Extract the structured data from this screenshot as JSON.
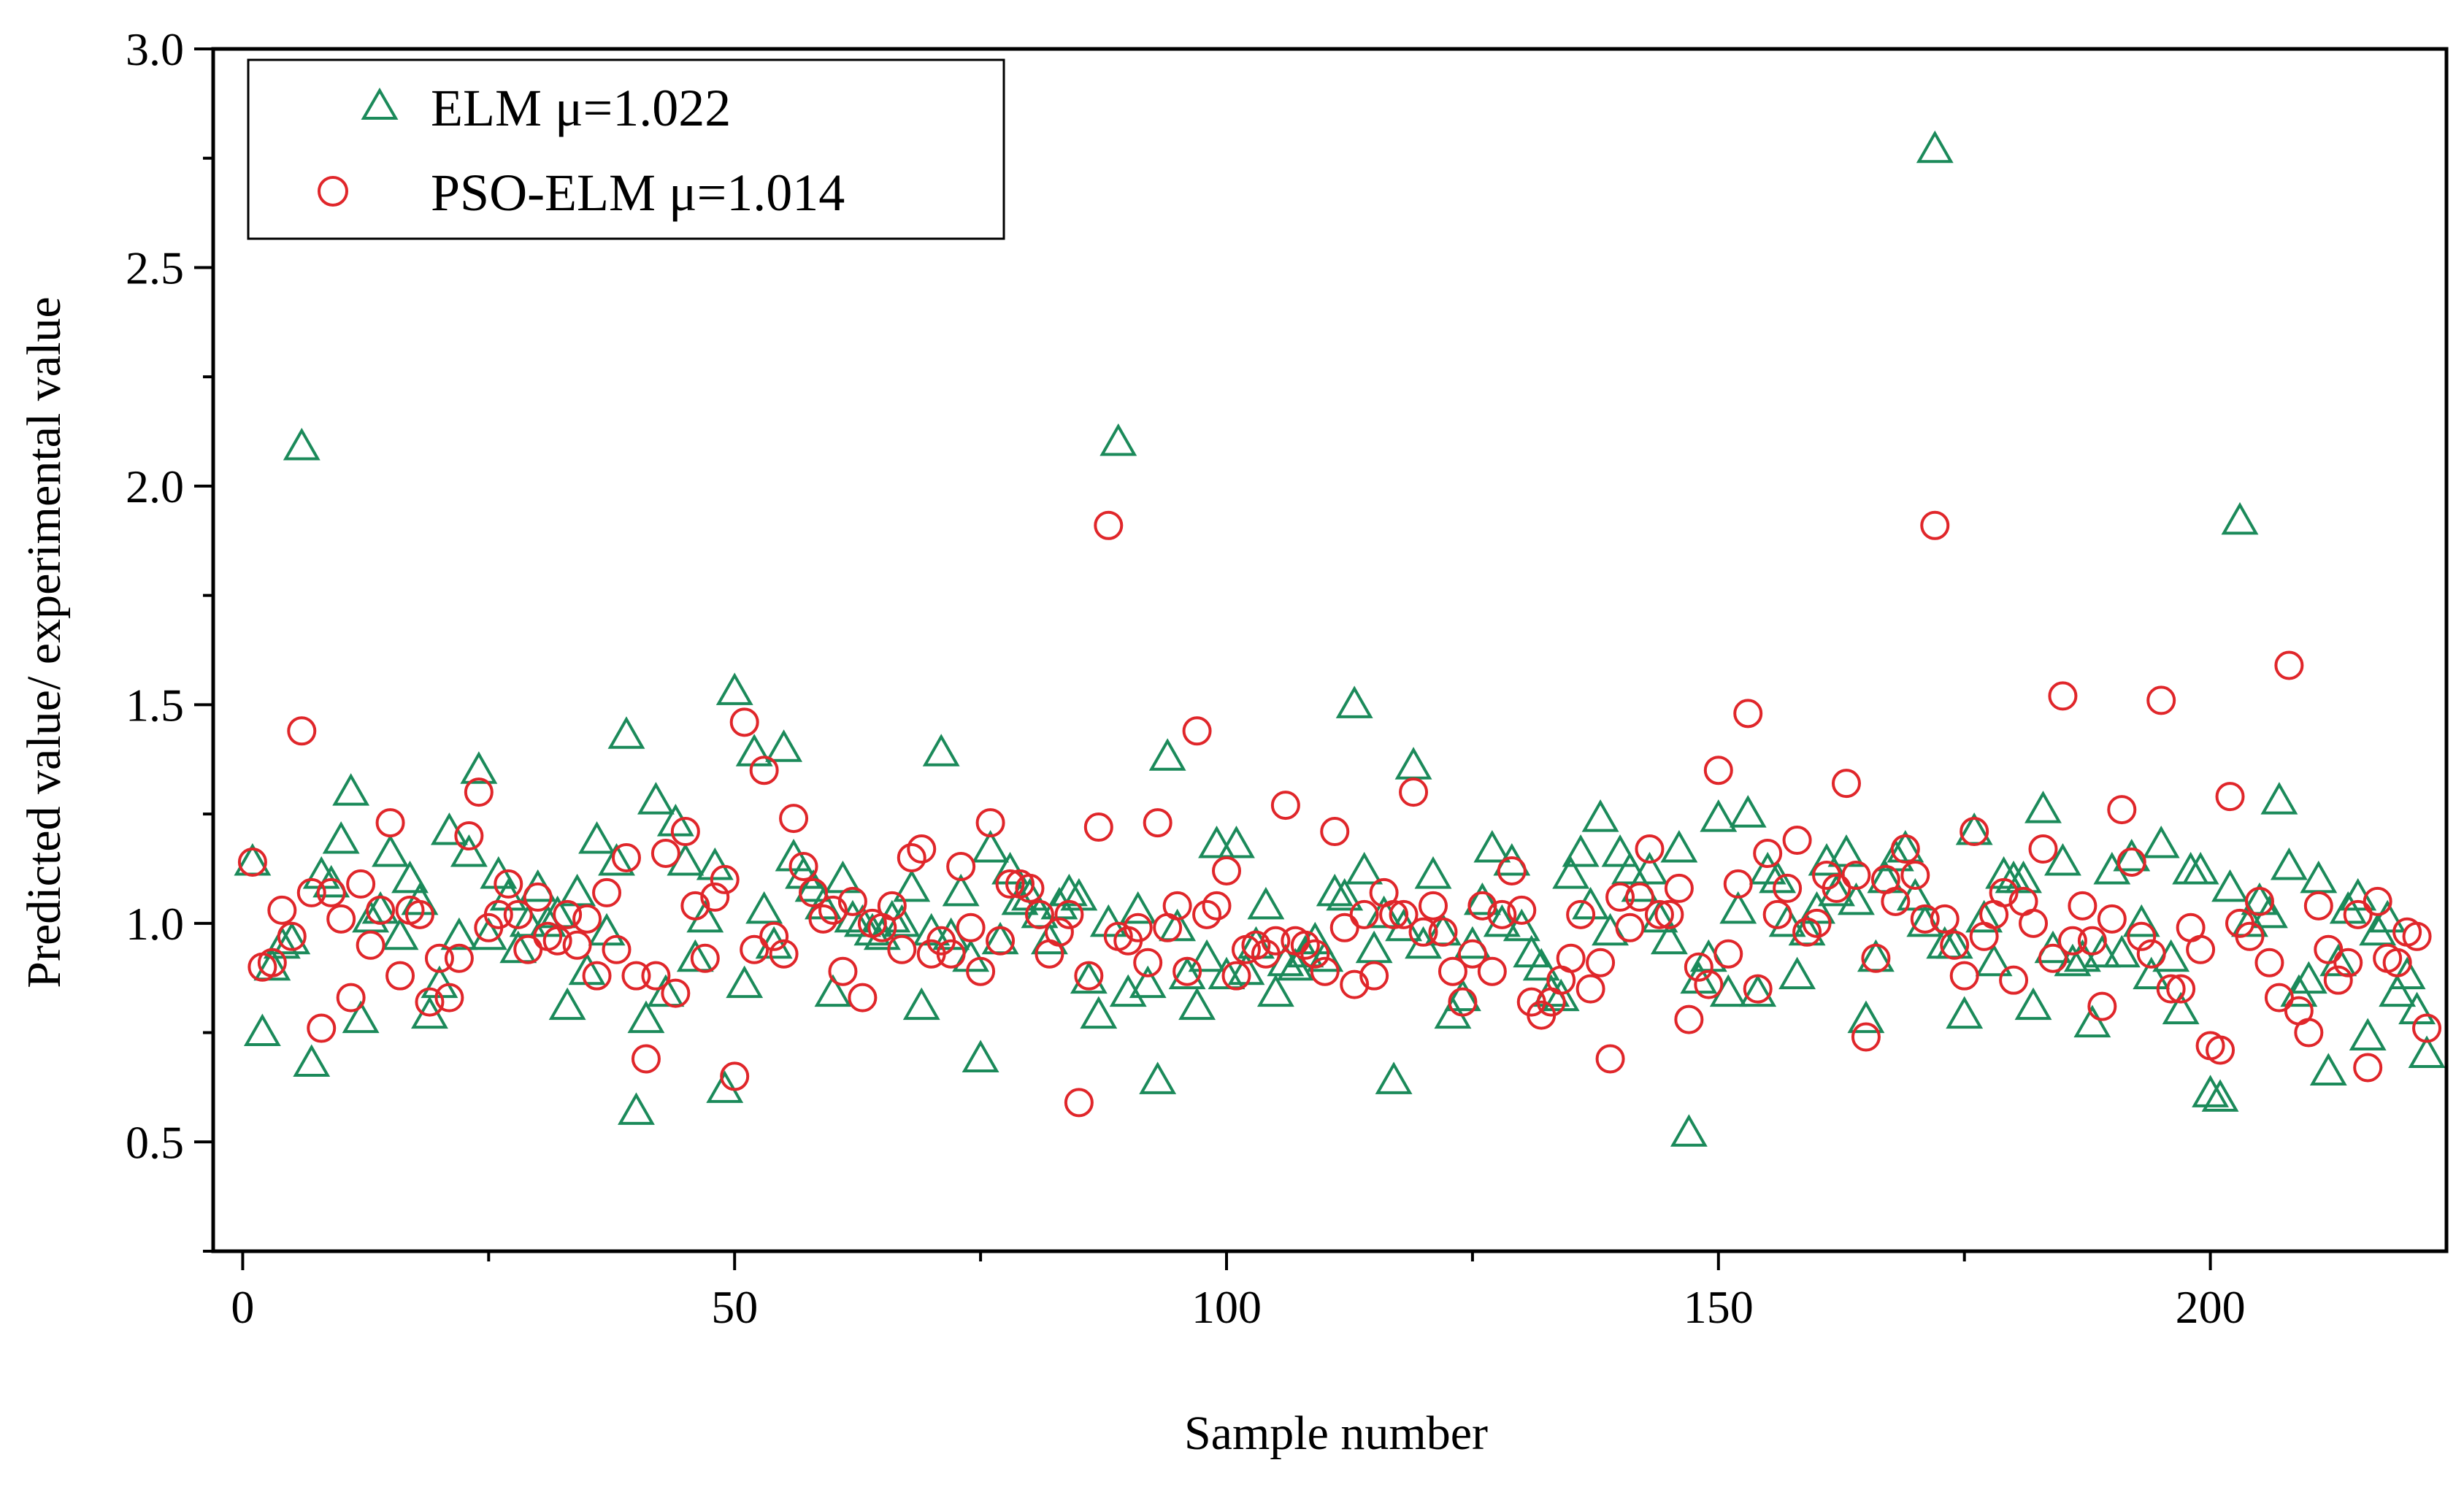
{
  "chart_data": {
    "type": "scatter",
    "title": "",
    "xlabel": "Sample number",
    "ylabel": "Predicted value/ experimental value",
    "xlim": [
      -3,
      224
    ],
    "ylim": [
      0.25,
      3.0
    ],
    "xticks": [
      0,
      50,
      100,
      150,
      200
    ],
    "xtick_labels": [
      "0",
      "50",
      "100",
      "150",
      "200"
    ],
    "yticks": [
      0.5,
      1.0,
      1.5,
      2.0,
      2.5,
      3.0
    ],
    "ytick_labels": [
      "0.5",
      "1.0",
      "1.5",
      "2.0",
      "2.5",
      "3.0"
    ],
    "legend_position": "top-left",
    "series": [
      {
        "name": "ELM",
        "legend_label": "ELM  μ=1.022",
        "marker": "triangle",
        "color": "#1b8a5a",
        "values": [
          1.14,
          0.75,
          0.9,
          0.95,
          0.96,
          2.09,
          0.68,
          1.11,
          1.09,
          1.19,
          1.3,
          0.78,
          1.01,
          1.03,
          1.16,
          0.97,
          1.1,
          1.05,
          0.79,
          0.86,
          1.21,
          0.97,
          1.16,
          1.35,
          0.97,
          1.11,
          1.06,
          0.94,
          1.0,
          1.08,
          1.0,
          1.02,
          0.81,
          1.07,
          0.89,
          1.19,
          0.98,
          1.14,
          1.43,
          0.57,
          0.78,
          1.28,
          0.84,
          1.23,
          1.14,
          0.92,
          1.01,
          1.13,
          0.62,
          1.53,
          0.86,
          1.39,
          1.03,
          0.95,
          1.4,
          1.15,
          1.11,
          1.08,
          1.04,
          0.84,
          1.1,
          1.01,
          1.0,
          0.98,
          0.97,
          1.01,
          1.0,
          1.08,
          0.81,
          0.98,
          1.39,
          0.97,
          1.07,
          0.92,
          0.69,
          1.17,
          0.96,
          1.12,
          1.05,
          1.06,
          1.02,
          0.96,
          1.04,
          1.07,
          1.06,
          0.87,
          0.79,
          1.0,
          2.1,
          0.84,
          1.03,
          0.86,
          0.64,
          1.38,
          0.99,
          0.88,
          0.81,
          0.92,
          1.18,
          0.88,
          1.18,
          0.89,
          0.95,
          1.04,
          0.84,
          0.91,
          0.9,
          0.93,
          0.96,
          0.92,
          1.07,
          1.06,
          1.5,
          1.12,
          0.94,
          1.02,
          0.64,
          0.99,
          1.36,
          0.95,
          1.11,
          0.98,
          0.79,
          0.83,
          0.95,
          1.05,
          1.17,
          1.0,
          1.14,
          0.99,
          0.93,
          0.9,
          0.84,
          0.83,
          1.11,
          1.16,
          1.04,
          1.24,
          0.98,
          1.16,
          1.12,
          1.08,
          1.12,
          1.01,
          0.96,
          1.17,
          0.52,
          0.87,
          0.92,
          1.24,
          0.84,
          1.03,
          1.25,
          0.84,
          1.12,
          1.1,
          1.0,
          0.88,
          0.98,
          1.03,
          1.14,
          1.07,
          1.16,
          1.05,
          0.78,
          0.92,
          1.1,
          1.15,
          1.17,
          1.06,
          1.0,
          2.77,
          0.95,
          0.95,
          0.79,
          1.21,
          1.01,
          0.91,
          1.11,
          1.1,
          1.1,
          0.81,
          1.26,
          0.94,
          1.14,
          0.91,
          0.92,
          0.77,
          0.93,
          1.12,
          0.93,
          1.15,
          1.0,
          0.88,
          1.18,
          0.92,
          0.8,
          1.12,
          1.12,
          0.61,
          0.6,
          1.08,
          1.92,
          1.0,
          1.05,
          1.02,
          1.28,
          1.13,
          0.84,
          0.87,
          1.1,
          0.66,
          0.91,
          1.03,
          1.06,
          0.74,
          0.98,
          1.01,
          0.84,
          0.88,
          0.8,
          0.7
        ]
      },
      {
        "name": "PSO-ELM",
        "legend_label": "PSO-ELM  μ=1.014",
        "marker": "circle",
        "color": "#e0262a",
        "values": [
          1.14,
          0.9,
          0.91,
          1.03,
          0.97,
          1.44,
          1.07,
          0.76,
          1.07,
          1.01,
          0.83,
          1.09,
          0.95,
          1.03,
          1.23,
          0.88,
          1.03,
          1.02,
          0.82,
          0.92,
          0.83,
          0.92,
          1.2,
          1.3,
          0.99,
          1.02,
          1.09,
          1.02,
          0.94,
          1.06,
          0.97,
          0.96,
          1.02,
          0.95,
          1.01,
          0.88,
          1.07,
          0.94,
          1.15,
          0.88,
          0.69,
          0.88,
          1.16,
          0.84,
          1.21,
          1.04,
          0.92,
          1.06,
          1.1,
          0.65,
          1.46,
          0.94,
          1.35,
          0.97,
          0.93,
          1.24,
          1.13,
          1.07,
          1.01,
          1.03,
          0.89,
          1.05,
          0.83,
          1.0,
          0.99,
          1.04,
          0.94,
          1.15,
          1.17,
          0.93,
          0.96,
          0.93,
          1.13,
          0.99,
          0.89,
          1.23,
          0.96,
          1.09,
          1.09,
          1.08,
          1.02,
          0.93,
          0.98,
          1.02,
          0.59,
          0.88,
          1.22,
          1.91,
          0.97,
          0.96,
          0.99,
          0.91,
          1.23,
          0.99,
          1.04,
          0.89,
          1.44,
          1.02,
          1.04,
          1.12,
          0.88,
          0.94,
          0.95,
          0.93,
          0.96,
          1.27,
          0.96,
          0.95,
          0.93,
          0.89,
          1.21,
          0.99,
          0.86,
          1.02,
          0.88,
          1.07,
          1.02,
          1.02,
          1.3,
          0.98,
          1.04,
          0.98,
          0.89,
          0.82,
          0.93,
          1.04,
          0.89,
          1.02,
          1.12,
          1.03,
          0.82,
          0.79,
          0.82,
          0.87,
          0.92,
          1.02,
          0.85,
          0.91,
          0.69,
          1.06,
          0.99,
          1.06,
          1.17,
          1.02,
          1.02,
          1.08,
          0.78,
          0.9,
          0.86,
          1.35,
          0.93,
          1.09,
          1.48,
          0.85,
          1.16,
          1.02,
          1.08,
          1.19,
          0.98,
          1.0,
          1.11,
          1.08,
          1.32,
          1.11,
          0.74,
          0.92,
          1.1,
          1.05,
          1.17,
          1.11,
          1.01,
          1.91,
          1.01,
          0.95,
          0.88,
          1.21,
          0.97,
          1.02,
          1.07,
          0.87,
          1.05,
          1.0,
          1.17,
          0.92,
          1.52,
          0.96,
          1.04,
          0.96,
          0.81,
          1.01,
          1.26,
          1.14,
          0.97,
          0.93,
          1.51,
          0.85,
          0.85,
          0.99,
          0.94,
          0.72,
          0.71,
          1.29,
          1.0,
          0.97,
          1.05,
          0.91,
          0.83,
          1.59,
          0.8,
          0.75,
          1.04,
          0.94,
          0.87,
          0.91,
          1.02,
          0.67,
          1.05,
          0.92,
          0.91,
          0.98,
          0.97,
          0.76
        ]
      }
    ]
  }
}
